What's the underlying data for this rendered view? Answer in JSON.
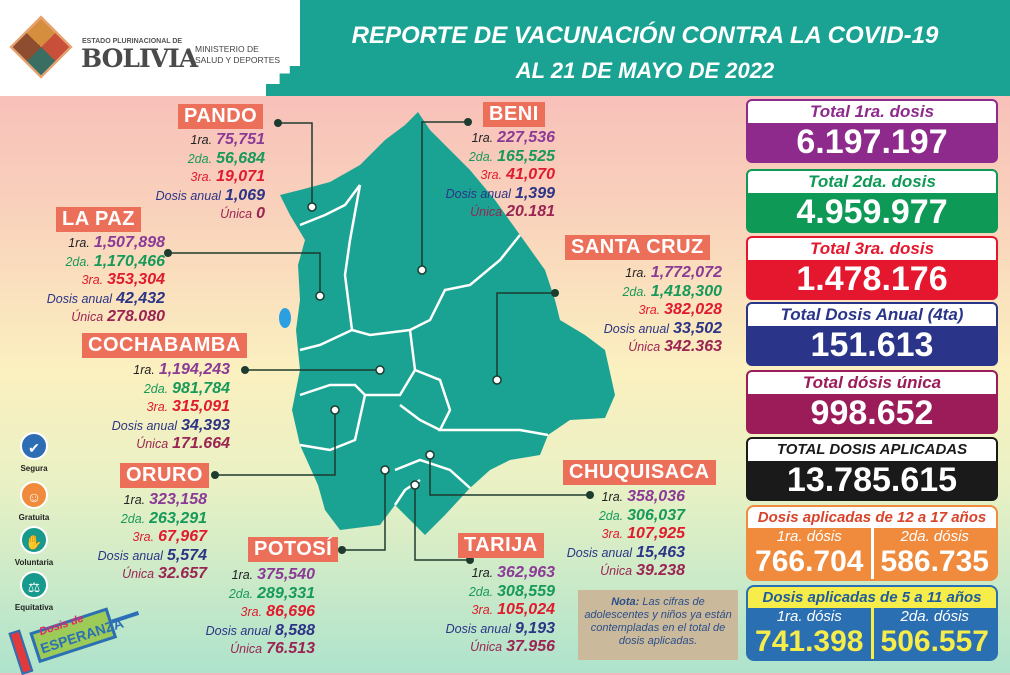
{
  "header": {
    "logo_estado": "ESTADO PLURINACIONAL DE",
    "logo_bolivia": "BOLIVIA",
    "ministry_line1": "MINISTERIO DE",
    "ministry_line2": "SALUD Y DEPORTES",
    "title": "REPORTE DE VACUNACIÓN CONTRA LA COVID-19",
    "subtitle": "AL 21 DE MAYO DE 2022"
  },
  "row_labels": [
    "1ra.",
    "2da.",
    "3ra.",
    "Dosis anual",
    "Única"
  ],
  "departments": [
    {
      "id": "pando",
      "name": "PANDO",
      "values": [
        "75,751",
        "56,684",
        "19,071",
        "1,069",
        "0"
      ]
    },
    {
      "id": "lapaz",
      "name": "LA PAZ",
      "values": [
        "1,507,898",
        "1,170,466",
        "353,304",
        "42,432",
        "278.080"
      ]
    },
    {
      "id": "cochabamba",
      "name": "COCHABAMBA",
      "values": [
        "1,194,243",
        "981,784",
        "315,091",
        "34,393",
        "171.664"
      ]
    },
    {
      "id": "oruro",
      "name": "ORURO",
      "values": [
        "323,158",
        "263,291",
        "67,967",
        "5,574",
        "32.657"
      ]
    },
    {
      "id": "potosi",
      "name": "POTOSÍ",
      "values": [
        "375,540",
        "289,331",
        "86,696",
        "8,588",
        "76.513"
      ]
    },
    {
      "id": "tarija",
      "name": "TARIJA",
      "values": [
        "362,963",
        "308,559",
        "105,024",
        "9,193",
        "37.956"
      ]
    },
    {
      "id": "chuquisaca",
      "name": "CHUQUISACA",
      "values": [
        "358,036",
        "306,037",
        "107,925",
        "15,463",
        "39.238"
      ]
    },
    {
      "id": "beni",
      "name": "BENI",
      "values": [
        "227,536",
        "165,525",
        "41,070",
        "1,399",
        "20.181"
      ]
    },
    {
      "id": "santacruz",
      "name": "SANTA CRUZ",
      "values": [
        "1,772,072",
        "1,418,300",
        "382,028",
        "33,502",
        "342.363"
      ]
    }
  ],
  "totals": [
    {
      "label": "Total 1ra. dosis",
      "value": "6.197.197",
      "color": "#8e2a8c"
    },
    {
      "label": "Total 2da. dosis",
      "value": "4.959.977",
      "color": "#0e9a56"
    },
    {
      "label": "Total 3ra. dosis",
      "value": "1.478.176",
      "color": "#e5172e"
    },
    {
      "label": "Total Dosis Anual (4ta)",
      "value": "151.613",
      "color": "#2a3589"
    },
    {
      "label": "Total dósis única",
      "value": "998.652",
      "color": "#9b1c58"
    },
    {
      "label": "TOTAL DOSIS APLICADAS",
      "value": "13.785.615",
      "color": "#1a1a1a"
    }
  ],
  "age_12_17": {
    "title": "Dosis aplicadas de 12 a 17 años",
    "first_label": "1ra. dósis",
    "first_value": "766.704",
    "second_label": "2da. dósis",
    "second_value": "586.735",
    "color": "#f08a3c"
  },
  "age_5_11": {
    "title": "Dosis aplicadas de 5 a 11 años",
    "first_label": "1ra. dósis",
    "first_value": "741.398",
    "second_label": "2da. dósis",
    "second_value": "506.557",
    "color": "#2b6fb3",
    "accent": "#f6ec4a"
  },
  "note": {
    "bold": "Nota:",
    "text": " Las cifras de adolescentes y niños ya están contempladas en el total de dosis aplicadas."
  },
  "badges": [
    {
      "label": "Segura",
      "icon": "shield-check-icon",
      "color": "#2d6db4"
    },
    {
      "label": "Gratuita",
      "icon": "smile-icon",
      "color": "#f08a3c"
    },
    {
      "label": "Voluntaria",
      "icon": "raised-hand-icon",
      "color": "#17998b"
    },
    {
      "label": "Equitativa",
      "icon": "scales-icon",
      "color": "#17998b"
    }
  ],
  "campaign_logo": {
    "line1": "Dosis de",
    "line2": "ESPERANZA"
  },
  "colors": {
    "teal": "#1aa393",
    "label_bg": "#ec6f59",
    "map": "#1aa393"
  }
}
